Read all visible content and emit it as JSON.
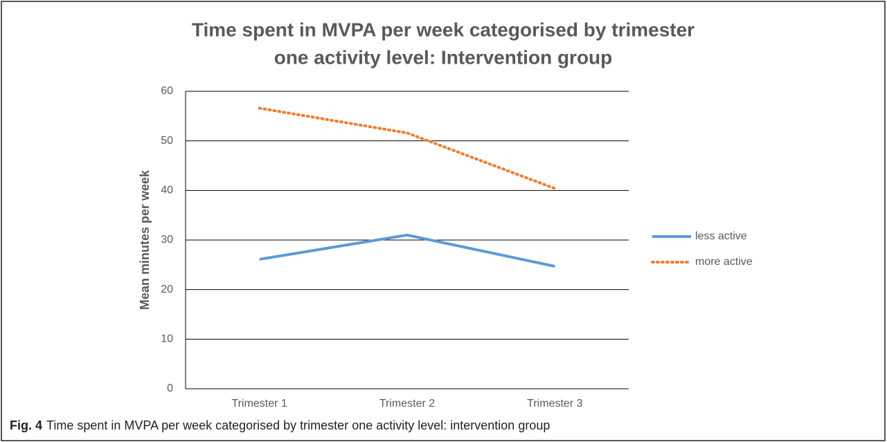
{
  "chart_data": {
    "type": "line",
    "title": [
      "Time spent in MVPA per week categorised by trimester",
      "one activity level: Intervention group"
    ],
    "y_label": "Mean minutes per week",
    "categories": [
      "Trimester 1",
      "Trimester 2",
      "Trimester 3"
    ],
    "series": [
      {
        "name": "less active",
        "color": "#5b9bd5",
        "dash": "solid",
        "values": [
          26.1,
          31,
          24.7
        ]
      },
      {
        "name": "more active",
        "color": "#ed7d31",
        "dash": "dotted",
        "values": [
          56.6,
          51.6,
          40.4
        ]
      }
    ],
    "ylim": [
      0,
      60
    ],
    "yticks": [
      0,
      10,
      20,
      30,
      40,
      50,
      60
    ],
    "grid": true,
    "legend": "right"
  },
  "caption": {
    "label": "Fig. 4",
    "text": "Time spent in MVPA per week categorised by trimester one activity level: intervention group"
  }
}
